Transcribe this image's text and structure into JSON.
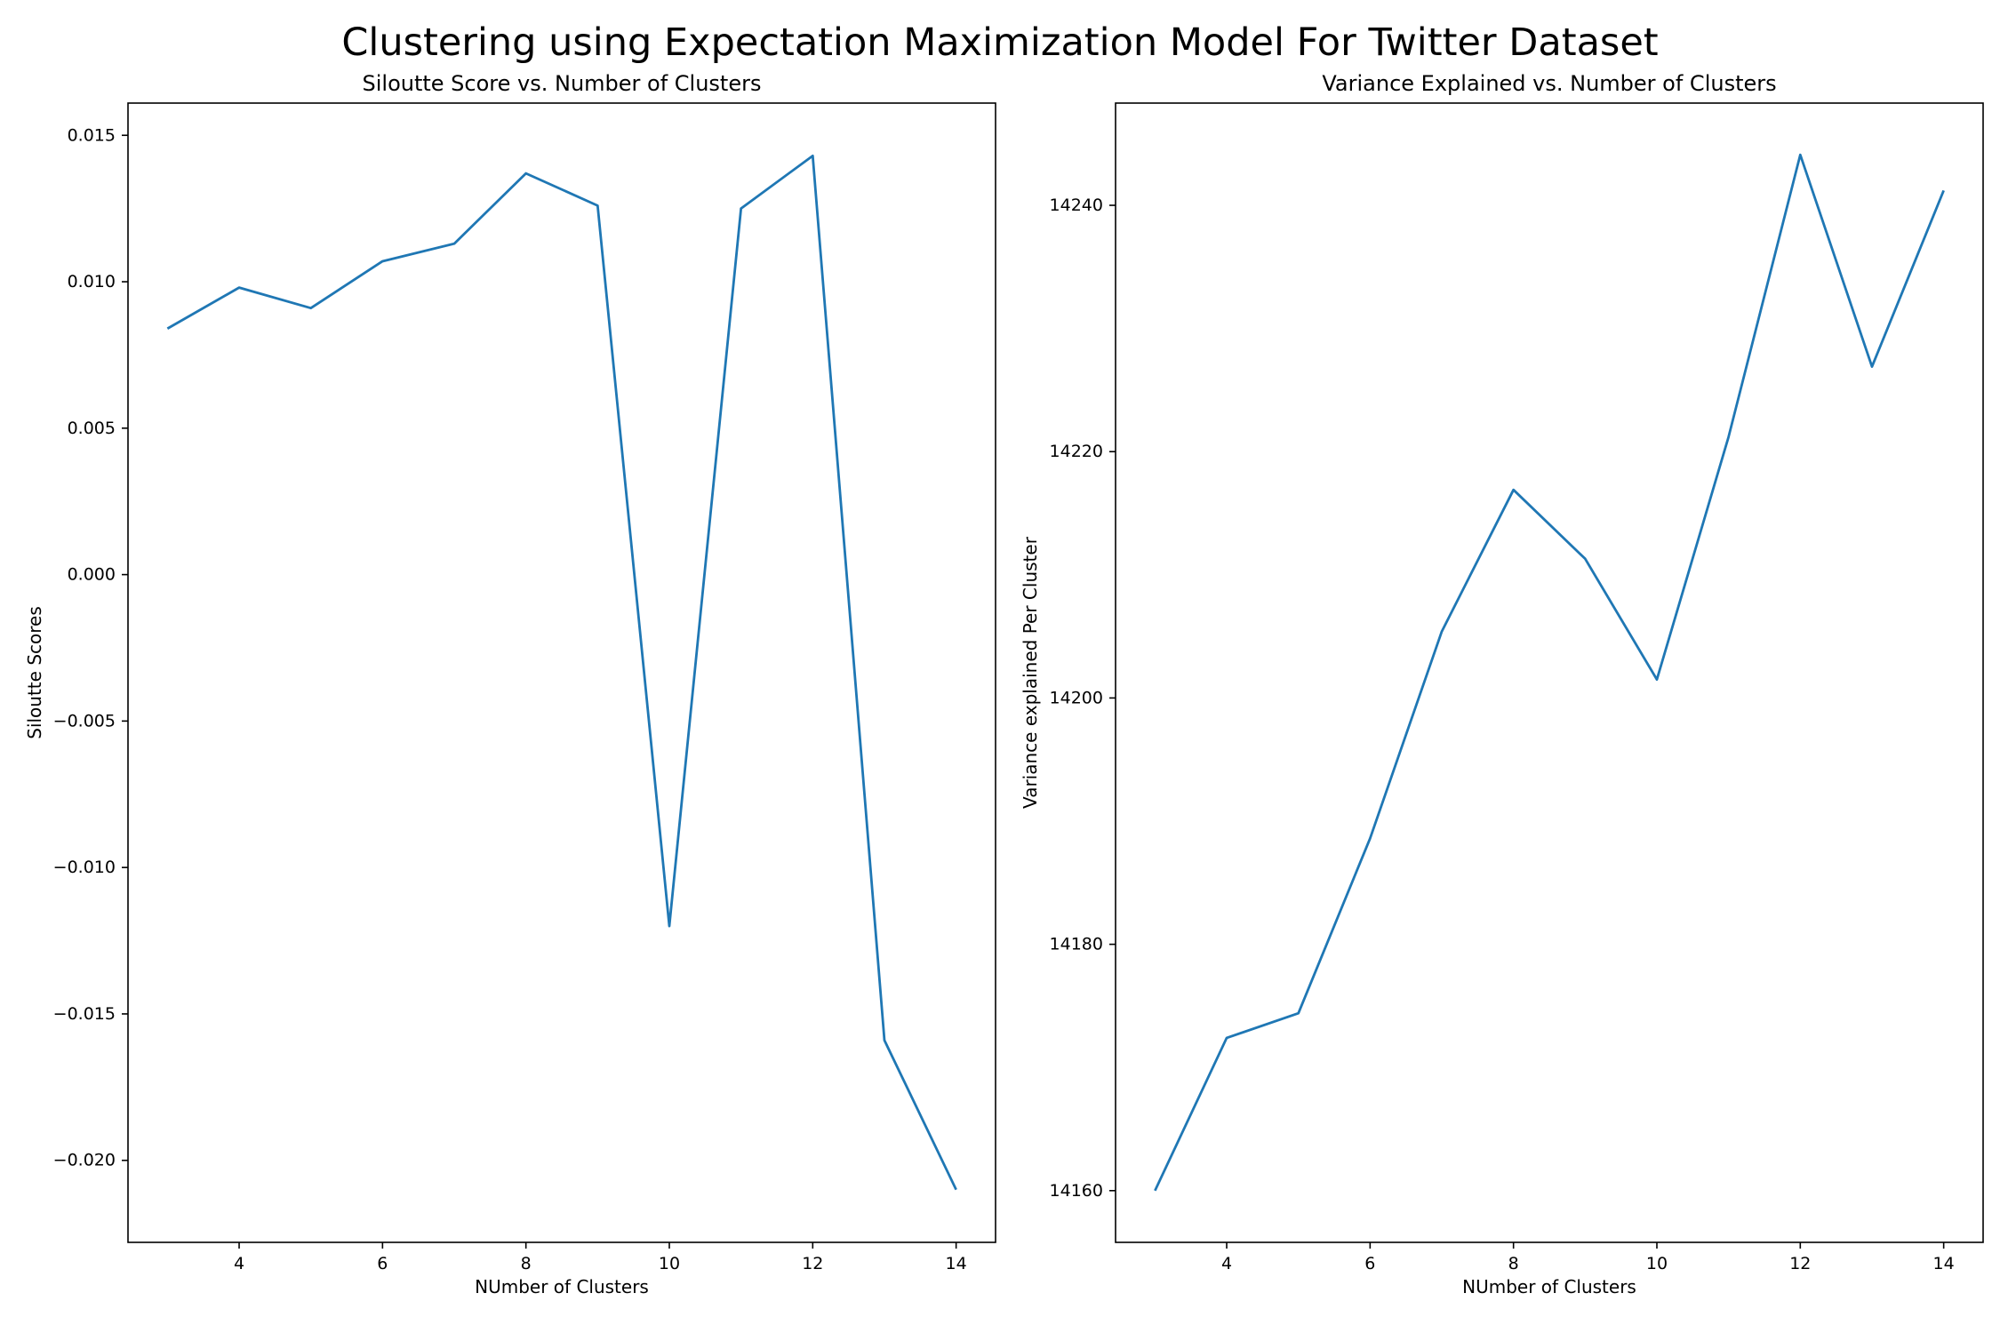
{
  "figure": {
    "title": "Clustering using Expectation Maximization Model For Twitter Dataset"
  },
  "chart_data": [
    {
      "type": "line",
      "title": "Siloutte Score vs. Number of Clusters",
      "xlabel": "NUmber of Clusters",
      "ylabel": "Siloutte Scores",
      "x": [
        3,
        4,
        5,
        6,
        7,
        8,
        9,
        10,
        11,
        12,
        13,
        14
      ],
      "series": [
        {
          "values": [
            0.0084,
            0.0098,
            0.0091,
            0.0107,
            0.0113,
            0.0137,
            0.0126,
            -0.012,
            0.0125,
            0.0143,
            -0.0159,
            -0.021
          ],
          "color": "#1f77b4"
        }
      ],
      "xlim": [
        2.45,
        14.55
      ],
      "ylim": [
        -0.0228,
        0.0161
      ],
      "xticks": [
        4,
        6,
        8,
        10,
        12,
        14
      ],
      "xtick_labels": [
        "4",
        "6",
        "8",
        "10",
        "12",
        "14"
      ],
      "yticks": [
        -0.02,
        -0.015,
        -0.01,
        -0.005,
        0.0,
        0.005,
        0.01,
        0.015
      ],
      "ytick_labels": [
        "−0.020",
        "−0.015",
        "−0.010",
        "−0.005",
        "0.000",
        "0.005",
        "0.010",
        "0.015"
      ],
      "grid": false,
      "legend": "none"
    },
    {
      "type": "line",
      "title": "Variance Explained vs. Number of Clusters",
      "xlabel": "NUmber of Clusters",
      "ylabel": "Variance explained Per Cluster",
      "x": [
        3,
        4,
        5,
        6,
        7,
        8,
        9,
        10,
        11,
        12,
        13,
        14
      ],
      "series": [
        {
          "values": [
            14160,
            14172.4,
            14174.4,
            14188.6,
            14205.4,
            14216.9,
            14211.3,
            14201.5,
            14221.2,
            14244.1,
            14226.9,
            14241.2
          ],
          "color": "#1f77b4"
        }
      ],
      "xlim": [
        2.45,
        14.55
      ],
      "ylim": [
        14155.8,
        14248.3
      ],
      "xticks": [
        4,
        6,
        8,
        10,
        12,
        14
      ],
      "xtick_labels": [
        "4",
        "6",
        "8",
        "10",
        "12",
        "14"
      ],
      "yticks": [
        14160,
        14180,
        14200,
        14220,
        14240
      ],
      "ytick_labels": [
        "14160",
        "14180",
        "14200",
        "14220",
        "14240"
      ],
      "grid": false,
      "legend": "none"
    }
  ]
}
